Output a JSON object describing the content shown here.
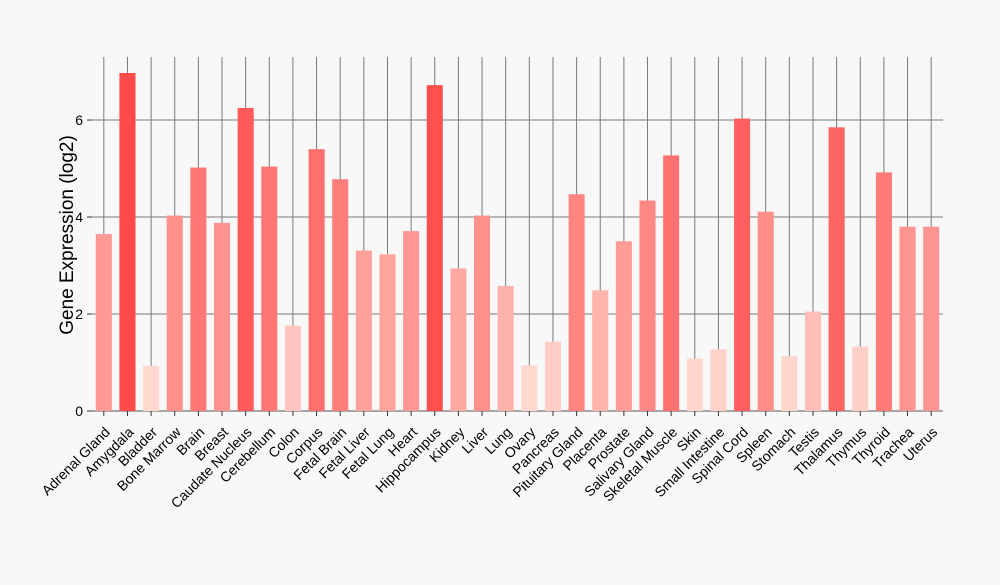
{
  "chart_data": {
    "type": "bar",
    "title": "",
    "xlabel": "",
    "ylabel": "Gene Expression (log2)",
    "ylim": [
      0,
      7.3
    ],
    "yticks": [
      0,
      2,
      4,
      6
    ],
    "grid": true,
    "colors": {
      "low": "#ffd9d0",
      "high": "#ff4a4a",
      "background": "#f8f8f8",
      "grid": "#7a7a7a"
    },
    "categories": [
      "Adrenal Gland",
      "Amygdala",
      "Bladder",
      "Bone Marrow",
      "Brain",
      "Breast",
      "Caudate Nucleus",
      "Cerebellum",
      "Colon",
      "Corpus",
      "Fetal Brain",
      "Fetal Liver",
      "Fetal Lung",
      "Heart",
      "Hippocampus",
      "Kidney",
      "Liver",
      "Lung",
      "Ovary",
      "Pancreas",
      "Pituitary Gland",
      "Placenta",
      "Prostate",
      "Salivary Gland",
      "Skeletal Muscle",
      "Skin",
      "Small Intestine",
      "Spinal Cord",
      "Spleen",
      "Stomach",
      "Testis",
      "Thalamus",
      "Thymus",
      "Thyroid",
      "Trachea",
      "Uterus"
    ],
    "values": [
      3.65,
      6.97,
      0.93,
      4.03,
      5.02,
      3.88,
      6.25,
      5.04,
      1.76,
      5.4,
      4.78,
      3.31,
      3.23,
      3.71,
      6.72,
      2.94,
      4.03,
      2.58,
      0.94,
      1.43,
      4.47,
      2.49,
      3.5,
      4.34,
      5.27,
      1.08,
      1.27,
      6.03,
      4.11,
      1.13,
      2.05,
      5.85,
      1.33,
      4.92,
      3.8,
      3.8
    ]
  }
}
